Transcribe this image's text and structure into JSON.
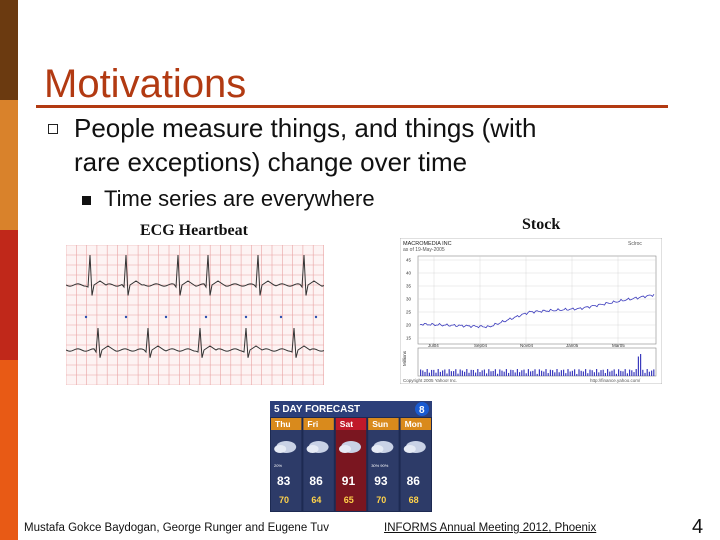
{
  "slide": {
    "title": "Motivations",
    "bullet_main_line1": "People measure things, and things (with",
    "bullet_main_line2": "rare exceptions) change over time",
    "sub_bullet": "Time series are everywhere",
    "caption_ecg": "ECG Heartbeat",
    "caption_stock": "Stock",
    "footer_left": "Mustafa Gokce Baydogan, George Runger and Eugene Tuv",
    "footer_center": "INFORMS Annual Meeting 2012, Phoenix",
    "page_number": "4"
  },
  "stock_image": {
    "company": "MACROMEDIA INC",
    "asof": "as of 19-May-2005",
    "link": "Sclroc",
    "y_ticks": [
      "45",
      "40",
      "35",
      "30",
      "25",
      "20",
      "15"
    ],
    "x_ticks": [
      "Jul04",
      "Sep04",
      "Nov04",
      "Jan05",
      "Mar05"
    ],
    "volume_label": "Millions",
    "copyright": "Copyright 2005 Yahoo! Inc.",
    "url": "http://finance.yahoo.com/"
  },
  "forecast": {
    "header": "5 DAY FORECAST",
    "station": "8",
    "days": [
      {
        "day": "Thu",
        "pop": "20%",
        "high": "83",
        "low": "70"
      },
      {
        "day": "Fri",
        "pop": "",
        "high": "86",
        "low": "64"
      },
      {
        "day": "Sat",
        "pop": "",
        "high": "91",
        "low": "65"
      },
      {
        "day": "Sun",
        "pop": "30% 90%",
        "high": "93",
        "low": "70"
      },
      {
        "day": "Mon",
        "pop": "",
        "high": "86",
        "low": "68"
      }
    ]
  }
}
